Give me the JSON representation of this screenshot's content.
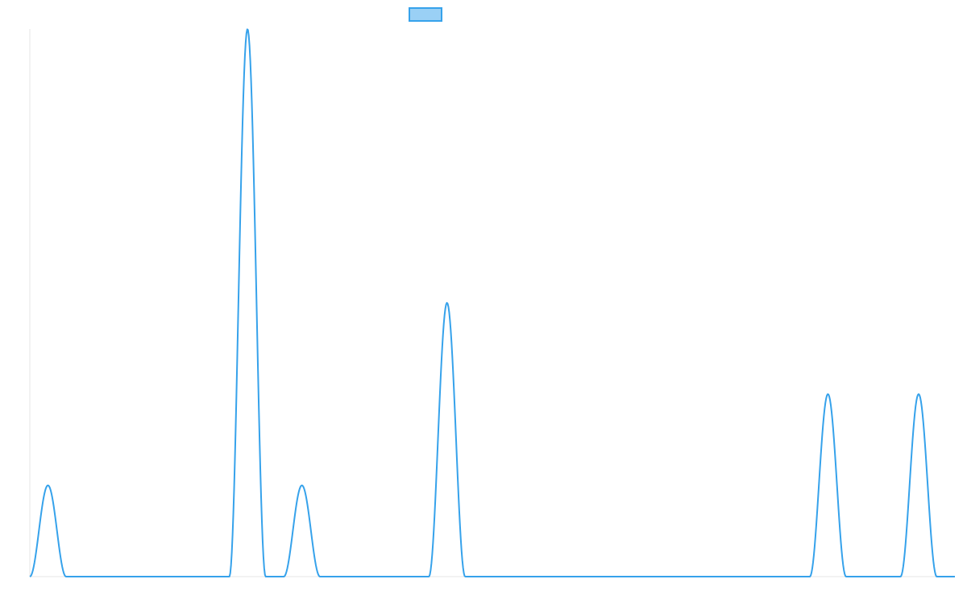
{
  "chart_data": {
    "type": "line",
    "title": "",
    "xlabel": "",
    "ylabel": "",
    "legend": {
      "position": "top",
      "entries": [
        {
          "label": ""
        }
      ]
    },
    "grid": false,
    "xlim": [
      0,
      102
    ],
    "ylim": [
      0,
      6
    ],
    "series": [
      {
        "color": "#36a2eb",
        "fill": "#9ad0f5",
        "peaks": [
          {
            "center": 2.0,
            "height": 1.0,
            "halfwidth": 2.0
          },
          {
            "center": 24.0,
            "height": 6.0,
            "halfwidth": 2.0
          },
          {
            "center": 30.0,
            "height": 1.0,
            "halfwidth": 2.0
          },
          {
            "center": 46.0,
            "height": 3.0,
            "halfwidth": 2.0
          },
          {
            "center": 88.0,
            "height": 2.0,
            "halfwidth": 2.0
          },
          {
            "center": 98.0,
            "height": 2.0,
            "halfwidth": 2.0
          }
        ]
      }
    ]
  }
}
